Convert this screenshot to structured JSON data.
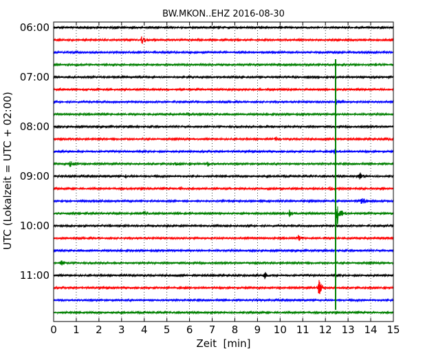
{
  "chart_data": {
    "type": "line",
    "title": "BW.MKON..EHZ 2016-08-30",
    "xlabel": "Zeit  [min]",
    "ylabel": "UTC (Lokalzeit = UTC + 02:00)",
    "xlim": [
      0,
      15
    ],
    "x_ticks": [
      "0",
      "1",
      "2",
      "3",
      "4",
      "5",
      "6",
      "7",
      "8",
      "9",
      "10",
      "11",
      "12",
      "13",
      "14",
      "15"
    ],
    "y_ticks": [
      "06:00",
      "07:00",
      "08:00",
      "09:00",
      "10:00",
      "11:00"
    ],
    "grid": "vertical dotted",
    "trace_colors": [
      "#000000",
      "#ff0000",
      "#0000ff",
      "#008000"
    ],
    "traces": [
      {
        "start": "06:00",
        "color": "#000000",
        "events": []
      },
      {
        "start": "06:15",
        "color": "#ff0000",
        "events": [
          {
            "t": 3.9,
            "amp": 7
          }
        ]
      },
      {
        "start": "06:30",
        "color": "#0000ff",
        "events": []
      },
      {
        "start": "06:45",
        "color": "#008000",
        "events": []
      },
      {
        "start": "07:00",
        "color": "#000000",
        "events": []
      },
      {
        "start": "07:15",
        "color": "#ff0000",
        "events": []
      },
      {
        "start": "07:30",
        "color": "#0000ff",
        "events": [
          {
            "t": 12.45,
            "amp": 6
          }
        ]
      },
      {
        "start": "07:45",
        "color": "#008000",
        "events": [
          {
            "t": 5.9,
            "amp": 3
          }
        ]
      },
      {
        "start": "08:00",
        "color": "#000000",
        "events": [
          {
            "t": 9.4,
            "amp": 3
          }
        ]
      },
      {
        "start": "08:15",
        "color": "#ff0000",
        "events": [
          {
            "t": 9.8,
            "amp": 4
          },
          {
            "t": 12.4,
            "amp": 3
          },
          {
            "t": 14.7,
            "amp": 3
          }
        ]
      },
      {
        "start": "08:30",
        "color": "#0000ff",
        "events": [
          {
            "t": 12.4,
            "amp": 4
          }
        ]
      },
      {
        "start": "08:45",
        "color": "#008000",
        "events": [
          {
            "t": 0.7,
            "amp": 5
          },
          {
            "t": 5.4,
            "amp": 2
          },
          {
            "t": 6.8,
            "amp": 3
          }
        ]
      },
      {
        "start": "09:00",
        "color": "#000000",
        "events": [
          {
            "t": 3.2,
            "amp": 3
          },
          {
            "t": 13.5,
            "amp": 6
          }
        ]
      },
      {
        "start": "09:15",
        "color": "#ff0000",
        "events": [
          {
            "t": 5.6,
            "amp": 3
          },
          {
            "t": 12.2,
            "amp": 3
          }
        ]
      },
      {
        "start": "09:30",
        "color": "#0000ff",
        "events": [
          {
            "t": 13.6,
            "amp": 8
          }
        ]
      },
      {
        "start": "09:45",
        "color": "#008000",
        "events": [
          {
            "t": 4.0,
            "amp": 6
          },
          {
            "t": 10.4,
            "amp": 5
          },
          {
            "t": 12.5,
            "amp": 22
          }
        ]
      },
      {
        "start": "10:00",
        "color": "#000000",
        "events": []
      },
      {
        "start": "10:15",
        "color": "#ff0000",
        "events": [
          {
            "t": 10.8,
            "amp": 4
          }
        ]
      },
      {
        "start": "10:30",
        "color": "#0000ff",
        "events": []
      },
      {
        "start": "10:45",
        "color": "#008000",
        "events": [
          {
            "t": 0.3,
            "amp": 5
          }
        ]
      },
      {
        "start": "11:00",
        "color": "#000000",
        "events": [
          {
            "t": 9.3,
            "amp": 6
          }
        ]
      },
      {
        "start": "11:15",
        "color": "#ff0000",
        "events": [
          {
            "t": 11.7,
            "amp": 14
          }
        ]
      },
      {
        "start": "11:30",
        "color": "#0000ff",
        "events": [
          {
            "t": 9.0,
            "amp": 2
          }
        ]
      },
      {
        "start": "11:45",
        "color": "#008000",
        "events": []
      }
    ],
    "vertical_event": {
      "t": 12.45,
      "color": "#008000",
      "from": "06:45",
      "to": "11:45"
    }
  }
}
